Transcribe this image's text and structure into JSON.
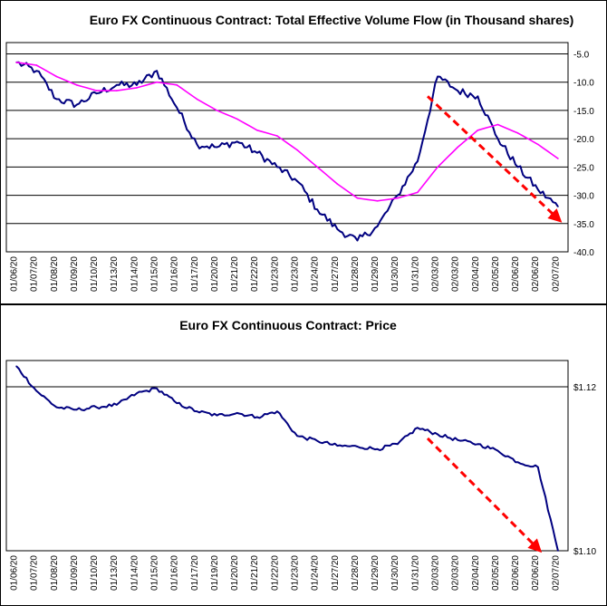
{
  "chart_data": [
    {
      "type": "line",
      "title": "Euro FX Continuous Contract: Total Effective Volume Flow (in Thousand shares)",
      "xlabel": "",
      "ylabel": "",
      "ylim": [
        -40,
        -3
      ],
      "y_ticks": [
        "-5.0",
        "-10.0",
        "-15.0",
        "-20.0",
        "-25.0",
        "-30.0",
        "-35.0",
        "-40.0"
      ],
      "y_tick_values": [
        -5,
        -10,
        -15,
        -20,
        -25,
        -30,
        -35,
        -40
      ],
      "y_axis_side": "right",
      "grid": "horizontal",
      "categories": [
        "01/06/20",
        "01/07/20",
        "01/08/20",
        "01/09/20",
        "01/10/20",
        "01/13/20",
        "01/14/20",
        "01/15/20",
        "01/16/20",
        "01/17/20",
        "01/20/20",
        "01/21/20",
        "01/22/20",
        "01/23/20",
        "01/23/20",
        "01/24/20",
        "01/27/20",
        "01/28/20",
        "01/29/20",
        "01/30/20",
        "01/31/20",
        "02/03/20",
        "02/03/20",
        "02/04/20",
        "02/05/20",
        "02/06/20",
        "02/06/20",
        "02/07/20"
      ],
      "series": [
        {
          "color": "#000080",
          "values": [
            -6.5,
            -8,
            -13,
            -14,
            -12,
            -10.5,
            -10.5,
            -8,
            -14.5,
            -21,
            -21.5,
            -20.5,
            -22.5,
            -25,
            -27.5,
            -32.5,
            -36,
            -38,
            -35.5,
            -30,
            -24,
            -9,
            -11.5,
            -12.5,
            -20,
            -25,
            -29,
            -32
          ]
        },
        {
          "color": "#ff00ff",
          "values": [
            -6.5,
            -7,
            -9,
            -10.5,
            -11.5,
            -11.5,
            -11,
            -10,
            -10.5,
            -13,
            -15,
            -16.5,
            -18.5,
            -19.5,
            -22,
            -25,
            -28,
            -30.5,
            -31,
            -30.5,
            -29.5,
            -25,
            -21.5,
            -18.5,
            -17.5,
            -19,
            -21,
            -23.5
          ]
        }
      ],
      "trend_arrow": {
        "color": "#ff0000",
        "from": [
          "02/03/20",
          -12.5
        ],
        "to": [
          "02/07/20",
          -34.5
        ]
      }
    },
    {
      "type": "line",
      "title": "Euro FX Continuous Contract: Price",
      "xlabel": "",
      "ylabel": "",
      "ylim": [
        1.1,
        1.1232
      ],
      "y_ticks": [
        "$1.12",
        "$1.10"
      ],
      "y_tick_values": [
        1.12,
        1.1
      ],
      "y_axis_side": "right",
      "grid": "horizontal",
      "categories": [
        "01/06/20",
        "01/07/20",
        "01/08/20",
        "01/09/20",
        "01/10/20",
        "01/13/20",
        "01/14/20",
        "01/15/20",
        "01/16/20",
        "01/17/20",
        "01/19/20",
        "01/20/20",
        "01/21/20",
        "01/22/20",
        "01/23/20",
        "01/24/20",
        "01/27/20",
        "01/28/20",
        "01/29/20",
        "01/30/20",
        "01/31/20",
        "02/03/20",
        "02/03/20",
        "02/04/20",
        "02/05/20",
        "02/06/20",
        "02/06/20",
        "02/07/20"
      ],
      "series": [
        {
          "color": "#000080",
          "values": [
            1.1225,
            1.1195,
            1.1175,
            1.1172,
            1.1175,
            1.1178,
            1.1192,
            1.1198,
            1.118,
            1.117,
            1.1165,
            1.1168,
            1.1163,
            1.117,
            1.114,
            1.1134,
            1.1128,
            1.1127,
            1.1124,
            1.113,
            1.115,
            1.1142,
            1.1135,
            1.113,
            1.1122,
            1.1108,
            1.1102,
            1.1
          ]
        }
      ],
      "trend_arrow": {
        "color": "#ff0000",
        "from": [
          "02/03/20",
          1.1137
        ],
        "to": [
          "02/06/20",
          1.1
        ]
      }
    }
  ]
}
